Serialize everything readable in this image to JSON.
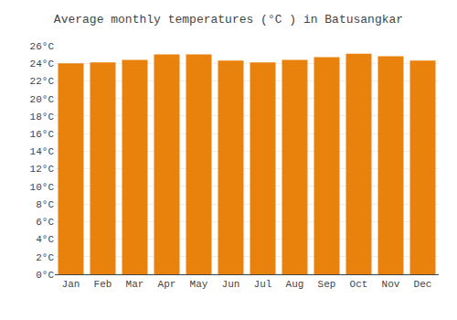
{
  "chart_data": {
    "type": "bar",
    "title": "Average monthly temperatures (°C ) in Batusangkar",
    "categories": [
      "Jan",
      "Feb",
      "Mar",
      "Apr",
      "May",
      "Jun",
      "Jul",
      "Aug",
      "Sep",
      "Oct",
      "Nov",
      "Dec"
    ],
    "values": [
      24.0,
      24.1,
      24.4,
      25.0,
      25.0,
      24.3,
      24.1,
      24.4,
      24.7,
      25.1,
      24.8,
      24.3
    ],
    "color": "#E8820C",
    "ylim": [
      0,
      26
    ],
    "yticks": [
      {
        "value": 0,
        "label": "0°C"
      },
      {
        "value": 2,
        "label": "2°C"
      },
      {
        "value": 4,
        "label": "4°C"
      },
      {
        "value": 6,
        "label": "6°C"
      },
      {
        "value": 8,
        "label": "8°C"
      },
      {
        "value": 10,
        "label": "10°C"
      },
      {
        "value": 12,
        "label": "12°C"
      },
      {
        "value": 14,
        "label": "14°C"
      },
      {
        "value": 16,
        "label": "16°C"
      },
      {
        "value": 18,
        "label": "18°C"
      },
      {
        "value": 20,
        "label": "20°C"
      },
      {
        "value": 22,
        "label": "22°C"
      },
      {
        "value": 24,
        "label": "24°C"
      },
      {
        "value": 26,
        "label": "26°C"
      }
    ],
    "grid": true
  }
}
